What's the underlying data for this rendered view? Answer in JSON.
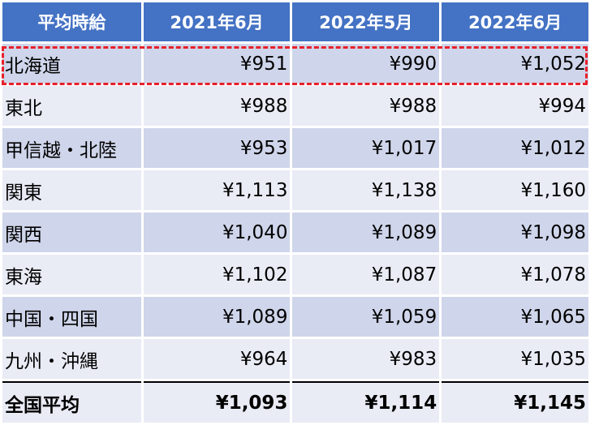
{
  "table": {
    "headers": [
      "平均時給",
      "2021年6月",
      "2022年5月",
      "2022年6月"
    ],
    "rows": [
      {
        "region": "北海道",
        "values": [
          "¥951",
          "¥990",
          "¥1,052"
        ]
      },
      {
        "region": "東北",
        "values": [
          "¥988",
          "¥988",
          "¥994"
        ]
      },
      {
        "region": "甲信越・北陸",
        "values": [
          "¥953",
          "¥1,017",
          "¥1,012"
        ]
      },
      {
        "region": "関東",
        "values": [
          "¥1,113",
          "¥1,138",
          "¥1,160"
        ]
      },
      {
        "region": "関西",
        "values": [
          "¥1,040",
          "¥1,089",
          "¥1,098"
        ]
      },
      {
        "region": "東海",
        "values": [
          "¥1,102",
          "¥1,087",
          "¥1,078"
        ]
      },
      {
        "region": "中国・四国",
        "values": [
          "¥1,089",
          "¥1,059",
          "¥1,065"
        ]
      },
      {
        "region": "九州・沖縄",
        "values": [
          "¥964",
          "¥983",
          "¥1,035"
        ]
      }
    ],
    "total": {
      "region": "全国平均",
      "values": [
        "¥1,093",
        "¥1,114",
        "¥1,145"
      ]
    }
  },
  "colors": {
    "header_bg": "#4472c4",
    "row_dark": "#cfd5ea",
    "row_light": "#e9ebf5",
    "highlight_border": "#e8202a"
  }
}
